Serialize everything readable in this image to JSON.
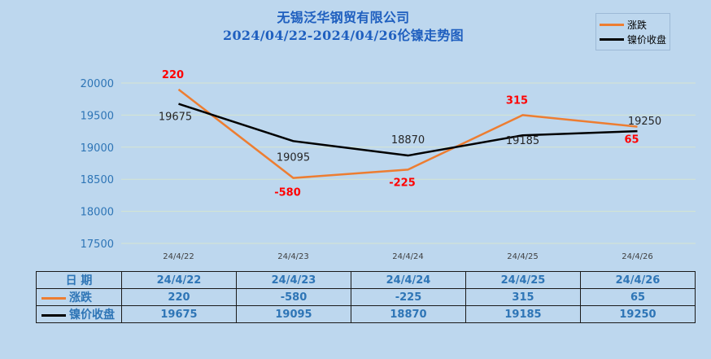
{
  "title_line1": "无锡泛华钢贸有限公司",
  "title_line2": "2024/04/22-2024/04/26伦镍走势图",
  "colors": {
    "change": "#ed7d31",
    "close": "#000000",
    "title": "#1f5fbf",
    "table_text": "#2e75b6",
    "change_label": "#ff0000",
    "background": "#bdd7ee"
  },
  "legend": {
    "change": "涨跌",
    "close": "镍价收盘"
  },
  "chart_data": {
    "type": "line",
    "categories": [
      "24/4/22",
      "24/4/23",
      "24/4/24",
      "24/4/25",
      "24/4/26"
    ],
    "series": [
      {
        "name": "涨跌",
        "values": [
          19900,
          18520,
          18650,
          19500,
          19320
        ],
        "labels": [
          "220",
          "-580",
          "-225",
          "315",
          "65"
        ]
      },
      {
        "name": "镍价收盘",
        "values": [
          19675,
          19095,
          18870,
          19185,
          19250
        ],
        "labels": [
          "19675",
          "19095",
          "18870",
          "19185",
          "19250"
        ]
      }
    ],
    "ylim": [
      17500,
      20000
    ],
    "yticks": [
      "17500",
      "18000",
      "18500",
      "19000",
      "19500",
      "20000"
    ],
    "grid": true,
    "legend_position": "top-right"
  },
  "table": {
    "date_header": "日 期",
    "dates": [
      "24/4/22",
      "24/4/23",
      "24/4/24",
      "24/4/25",
      "24/4/26"
    ],
    "rows": [
      {
        "label": "涨跌",
        "values": [
          "220",
          "-580",
          "-225",
          "315",
          "65"
        ]
      },
      {
        "label": "镍价收盘",
        "values": [
          "19675",
          "19095",
          "18870",
          "19185",
          "19250"
        ]
      }
    ]
  }
}
